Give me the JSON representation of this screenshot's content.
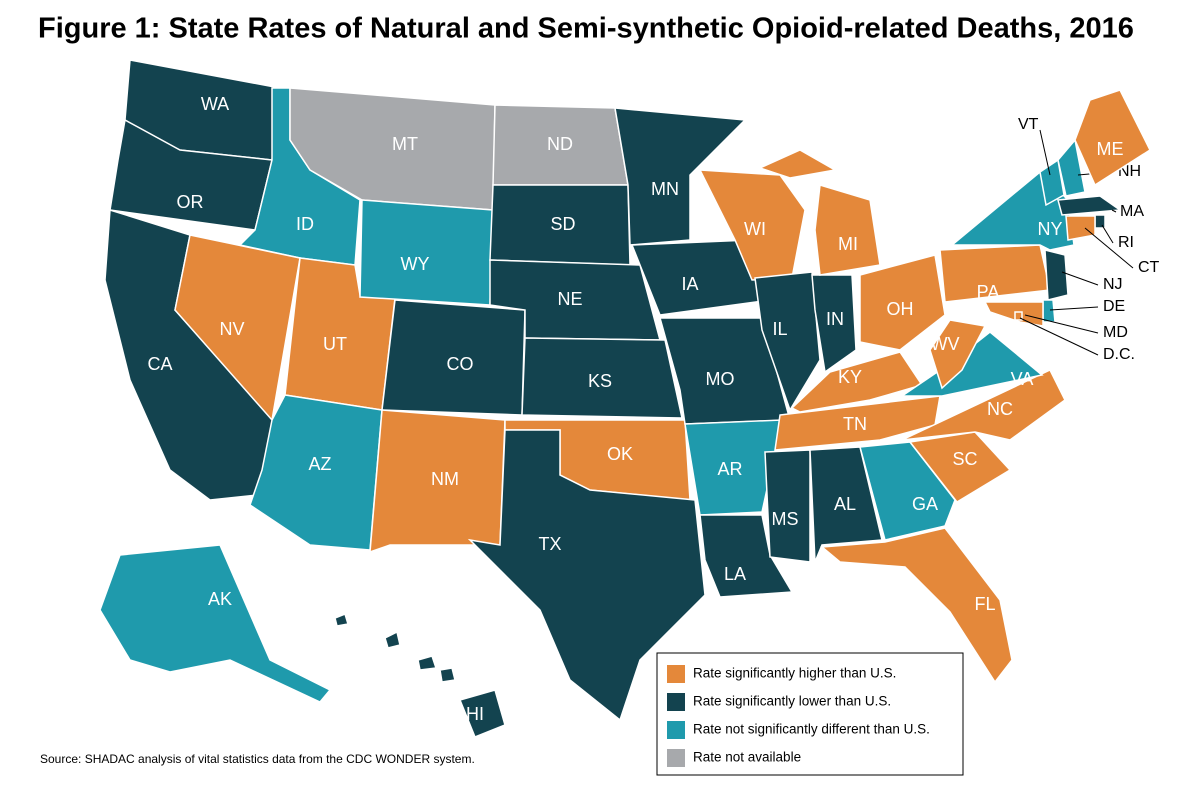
{
  "title": "Figure 1: State Rates of Natural and Semi-synthetic Opioid-related Deaths, 2016",
  "source": "Source: SHADAC analysis of vital statistics data from the CDC WONDER system.",
  "legend": [
    {
      "label": "Rate significantly higher than U.S.",
      "color": "#e4883a"
    },
    {
      "label": "Rate significantly lower than U.S.",
      "color": "#13434f"
    },
    {
      "label": "Rate not significantly different than U.S.",
      "color": "#1f9aac"
    },
    {
      "label": "Rate not available",
      "color": "#a7a9ac"
    }
  ],
  "states": [
    {
      "abbr": "WA",
      "color": "#13434f"
    },
    {
      "abbr": "OR",
      "color": "#13434f"
    },
    {
      "abbr": "CA",
      "color": "#13434f"
    },
    {
      "abbr": "ID",
      "color": "#1f9aac"
    },
    {
      "abbr": "NV",
      "color": "#e4883a"
    },
    {
      "abbr": "UT",
      "color": "#e4883a"
    },
    {
      "abbr": "AZ",
      "color": "#1f9aac"
    },
    {
      "abbr": "MT",
      "color": "#a7a9ac"
    },
    {
      "abbr": "WY",
      "color": "#1f9aac"
    },
    {
      "abbr": "CO",
      "color": "#13434f"
    },
    {
      "abbr": "NM",
      "color": "#e4883a"
    },
    {
      "abbr": "ND",
      "color": "#a7a9ac"
    },
    {
      "abbr": "SD",
      "color": "#13434f"
    },
    {
      "abbr": "NE",
      "color": "#13434f"
    },
    {
      "abbr": "KS",
      "color": "#13434f"
    },
    {
      "abbr": "OK",
      "color": "#e4883a"
    },
    {
      "abbr": "TX",
      "color": "#13434f"
    },
    {
      "abbr": "MN",
      "color": "#13434f"
    },
    {
      "abbr": "IA",
      "color": "#13434f"
    },
    {
      "abbr": "MO",
      "color": "#13434f"
    },
    {
      "abbr": "AR",
      "color": "#1f9aac"
    },
    {
      "abbr": "LA",
      "color": "#13434f"
    },
    {
      "abbr": "WI",
      "color": "#e4883a"
    },
    {
      "abbr": "IL",
      "color": "#13434f"
    },
    {
      "abbr": "IN",
      "color": "#13434f"
    },
    {
      "abbr": "MI",
      "color": "#e4883a"
    },
    {
      "abbr": "OH",
      "color": "#e4883a"
    },
    {
      "abbr": "KY",
      "color": "#e4883a"
    },
    {
      "abbr": "TN",
      "color": "#e4883a"
    },
    {
      "abbr": "MS",
      "color": "#13434f"
    },
    {
      "abbr": "AL",
      "color": "#13434f"
    },
    {
      "abbr": "GA",
      "color": "#1f9aac"
    },
    {
      "abbr": "FL",
      "color": "#e4883a"
    },
    {
      "abbr": "SC",
      "color": "#e4883a"
    },
    {
      "abbr": "NC",
      "color": "#e4883a"
    },
    {
      "abbr": "VA",
      "color": "#1f9aac"
    },
    {
      "abbr": "WV",
      "color": "#e4883a"
    },
    {
      "abbr": "PA",
      "color": "#e4883a"
    },
    {
      "abbr": "NY",
      "color": "#1f9aac"
    },
    {
      "abbr": "NJ",
      "color": "#13434f"
    },
    {
      "abbr": "DE",
      "color": "#1f9aac"
    },
    {
      "abbr": "MD",
      "color": "#e4883a"
    },
    {
      "abbr": "D.C.",
      "color": "#e4883a"
    },
    {
      "abbr": "VT",
      "color": "#1f9aac"
    },
    {
      "abbr": "NH",
      "color": "#1f9aac"
    },
    {
      "abbr": "ME",
      "color": "#e4883a"
    },
    {
      "abbr": "MA",
      "color": "#13434f"
    },
    {
      "abbr": "RI",
      "color": "#13434f"
    },
    {
      "abbr": "CT",
      "color": "#e4883a"
    },
    {
      "abbr": "AK",
      "color": "#1f9aac"
    },
    {
      "abbr": "HI",
      "color": "#13434f"
    }
  ]
}
